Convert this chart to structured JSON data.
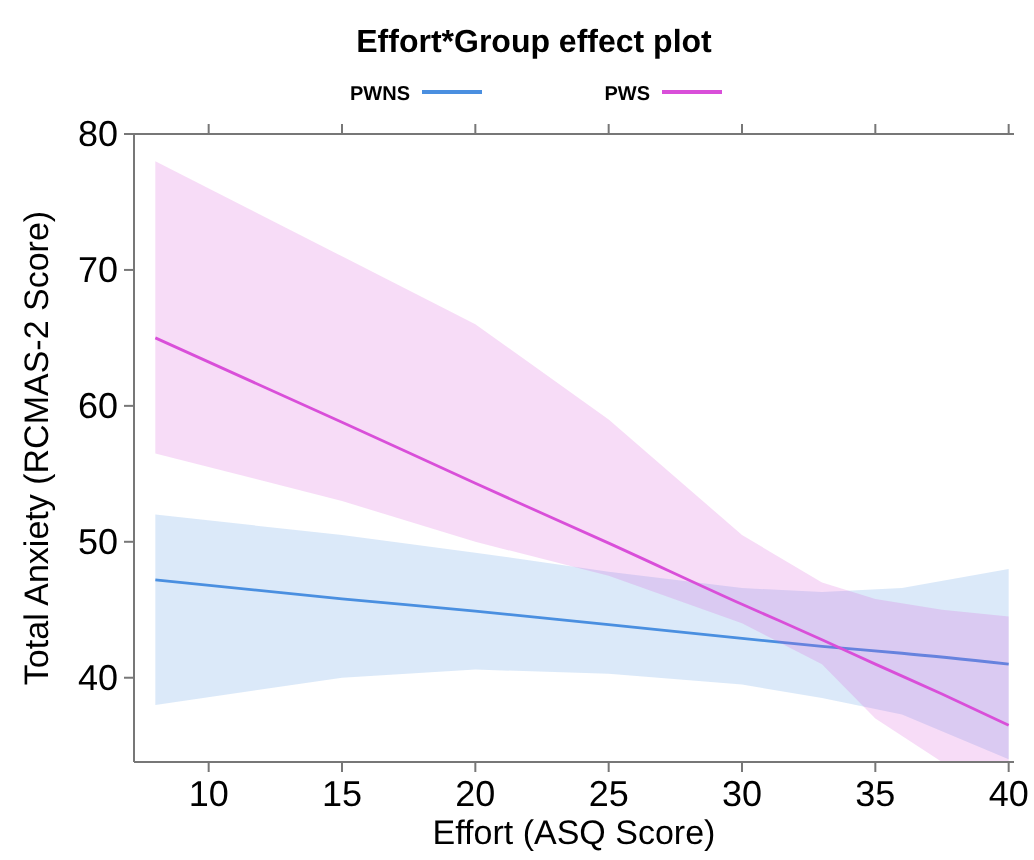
{
  "chart_data": {
    "type": "line",
    "title": "Effort*Group effect plot",
    "xlabel": "Effort (ASQ Score)",
    "ylabel": "Total Anxiety (RCMAS-2 Score)",
    "xlim": [
      7.2,
      40.2
    ],
    "xticks": [
      10,
      15,
      20,
      25,
      30,
      35,
      40
    ],
    "ylim": [
      33.8,
      80
    ],
    "yticks": [
      40,
      50,
      60,
      70,
      80
    ],
    "legend": "top",
    "grid": false,
    "marker": "none",
    "line_style": "solid",
    "series": [
      {
        "name": "PWNS",
        "color": "#4a8fe0",
        "x": [
          8,
          15,
          20,
          25,
          30,
          33,
          36,
          40
        ],
        "values": [
          47.2,
          45.8,
          44.9,
          43.9,
          42.9,
          42.3,
          41.8,
          41
        ],
        "lower": [
          38,
          40,
          40.6,
          40.3,
          39.5,
          38.5,
          37.3,
          34
        ],
        "upper": [
          52,
          50.5,
          49.2,
          47.8,
          46.6,
          46.3,
          46.6,
          48
        ]
      },
      {
        "name": "PWS",
        "color": "#d94fd9",
        "x": [
          8,
          15,
          20,
          25,
          30,
          33,
          35,
          37.5,
          40
        ],
        "values": [
          65,
          58.8,
          54.3,
          49.9,
          45.4,
          42.8,
          41,
          38.8,
          36.5
        ],
        "lower": [
          56.5,
          53,
          50,
          47.5,
          44,
          41,
          37,
          33.8,
          33.8
        ],
        "upper": [
          78,
          71,
          66,
          59,
          50.5,
          47,
          45.8,
          45,
          44.5
        ]
      }
    ]
  }
}
